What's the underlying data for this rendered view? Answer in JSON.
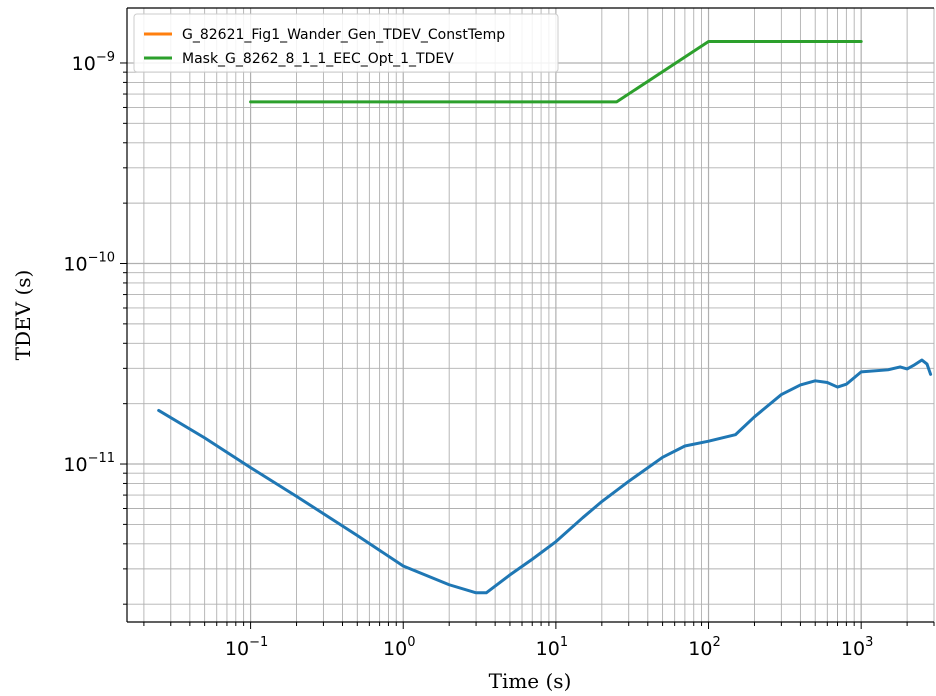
{
  "chart_data": {
    "type": "line",
    "title": "",
    "xlabel": "Time (s)",
    "ylabel": "TDEV (s)",
    "xscale": "log",
    "yscale": "log",
    "xlim": [
      0.0155,
      3000
    ],
    "ylim": [
      1.63e-12,
      1.88e-09
    ],
    "grid": "major-and-minor",
    "legend_position": "top-left",
    "x_ticks": [
      {
        "base": "10",
        "exp": "−1",
        "value": 0.1
      },
      {
        "base": "10",
        "exp": "0",
        "value": 1
      },
      {
        "base": "10",
        "exp": "1",
        "value": 10
      },
      {
        "base": "10",
        "exp": "2",
        "value": 100
      },
      {
        "base": "10",
        "exp": "3",
        "value": 1000
      }
    ],
    "y_ticks": [
      {
        "base": "10",
        "exp": "−11",
        "value": 1e-11
      },
      {
        "base": "10",
        "exp": "−10",
        "value": 1e-10
      },
      {
        "base": "10",
        "exp": "−9",
        "value": 1e-09
      }
    ],
    "legend": [
      {
        "name": "G_82621_Fig1_Wander_Gen_TDEV_ConstTemp",
        "color": "#ff7f0e"
      },
      {
        "name": "Mask_G_8262_8_1_1_EEC_Opt_1_TDEV",
        "color": "#2ca02c"
      }
    ],
    "series": [
      {
        "color": "#1f77b4",
        "x": [
          0.025,
          0.05,
          0.1,
          0.2,
          0.5,
          1,
          2,
          3,
          3.5,
          5,
          7,
          10,
          15,
          20,
          30,
          50,
          70,
          100,
          150,
          200,
          300,
          400,
          500,
          600,
          700,
          800,
          1000,
          1500,
          1800,
          2000,
          2200,
          2500,
          2700,
          2850
        ],
        "y": [
          1.85e-11,
          1.35e-11,
          9.6e-12,
          6.9e-12,
          4.4e-12,
          3.1e-12,
          2.5e-12,
          2.28e-12,
          2.28e-12,
          2.8e-12,
          3.35e-12,
          4.1e-12,
          5.4e-12,
          6.5e-12,
          8.2e-12,
          1.08e-11,
          1.23e-11,
          1.3e-11,
          1.4e-11,
          1.72e-11,
          2.22e-11,
          2.48e-11,
          2.6e-11,
          2.55e-11,
          2.42e-11,
          2.5e-11,
          2.88e-11,
          2.95e-11,
          3.05e-11,
          2.98e-11,
          3.1e-11,
          3.3e-11,
          3.15e-11,
          2.8e-11
        ]
      },
      {
        "name": "Mask_G_8262_8_1_1_EEC_Opt_1_TDEV",
        "color": "#2ca02c",
        "x": [
          0.1,
          25,
          100,
          1000
        ],
        "y": [
          6.4e-10,
          6.4e-10,
          1.28e-09,
          1.28e-09
        ]
      }
    ]
  }
}
